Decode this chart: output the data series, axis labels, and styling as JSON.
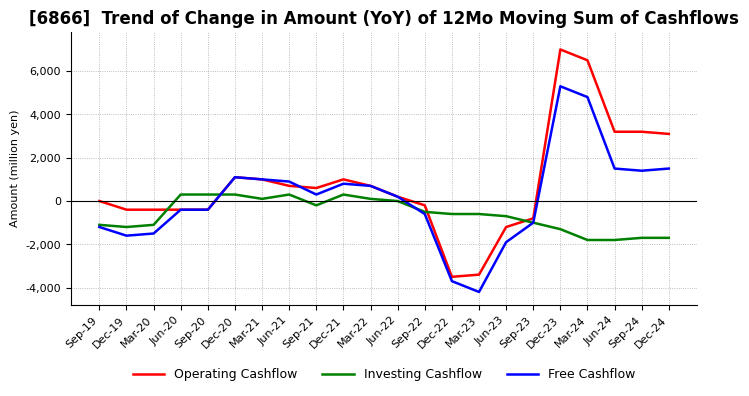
{
  "title": "[6866]  Trend of Change in Amount (YoY) of 12Mo Moving Sum of Cashflows",
  "ylabel": "Amount (million yen)",
  "x_labels": [
    "Sep-19",
    "Dec-19",
    "Mar-20",
    "Jun-20",
    "Sep-20",
    "Dec-20",
    "Mar-21",
    "Jun-21",
    "Sep-21",
    "Dec-21",
    "Mar-22",
    "Jun-22",
    "Sep-22",
    "Dec-22",
    "Mar-23",
    "Jun-23",
    "Sep-23",
    "Dec-23",
    "Mar-24",
    "Jun-24",
    "Sep-24",
    "Dec-24"
  ],
  "operating_cashflow": [
    0,
    -400,
    -400,
    -400,
    -400,
    1100,
    1000,
    700,
    600,
    1000,
    700,
    200,
    -200,
    -3500,
    -3400,
    -1200,
    -800,
    7000,
    6500,
    3200,
    3200,
    3100
  ],
  "investing_cashflow": [
    -1100,
    -1200,
    -1100,
    300,
    300,
    300,
    100,
    300,
    -200,
    300,
    100,
    0,
    -500,
    -600,
    -600,
    -700,
    -1000,
    -1300,
    -1800,
    -1800,
    -1700,
    -1700
  ],
  "free_cashflow": [
    -1200,
    -1600,
    -1500,
    -400,
    -400,
    1100,
    1000,
    900,
    300,
    800,
    700,
    200,
    -600,
    -3700,
    -4200,
    -1900,
    -1000,
    5300,
    4800,
    1500,
    1400,
    1500
  ],
  "ylim": [
    -4800,
    7800
  ],
  "yticks": [
    -4000,
    -2000,
    0,
    2000,
    4000,
    6000
  ],
  "operating_color": "#ff0000",
  "investing_color": "#008000",
  "free_color": "#0000ff",
  "grid_color": "#aaaaaa",
  "title_fontsize": 12,
  "axis_fontsize": 8,
  "legend_fontsize": 9
}
